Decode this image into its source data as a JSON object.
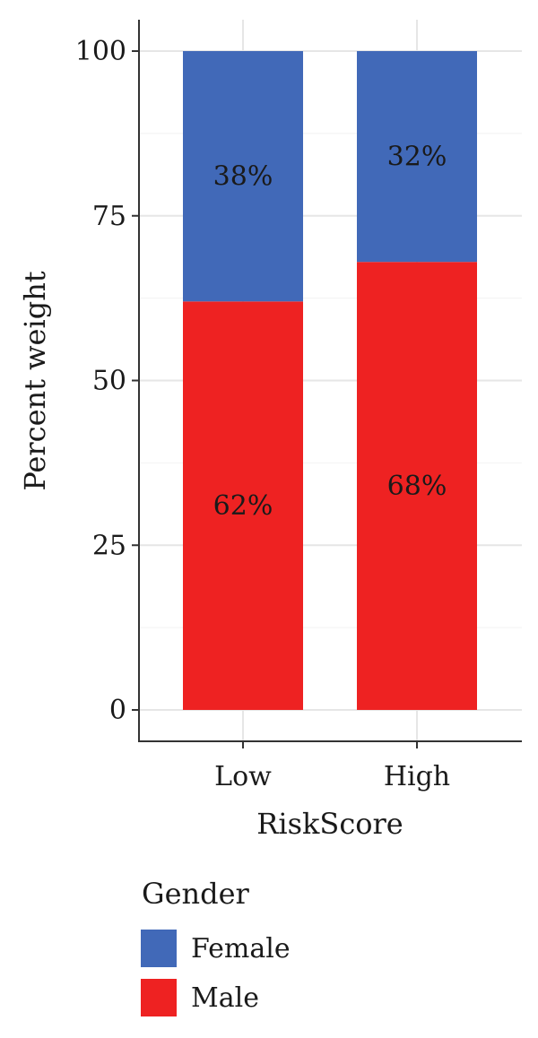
{
  "chart_data": {
    "type": "bar",
    "stacked": true,
    "categories": [
      "Low",
      "High"
    ],
    "series": [
      {
        "name": "Male",
        "values": [
          62,
          68
        ],
        "labels": [
          "62%",
          "68%"
        ],
        "color": "#ee2222"
      },
      {
        "name": "Female",
        "values": [
          38,
          32
        ],
        "labels": [
          "38%",
          "32%"
        ],
        "color": "#4169b8"
      }
    ],
    "xlabel": "RiskScore",
    "ylabel": "Percent weight",
    "ylim": [
      0,
      100
    ],
    "yticks": [
      0,
      25,
      50,
      75,
      100
    ],
    "grid": true,
    "legend": {
      "title": "Gender",
      "position": "bottom-left",
      "entries": [
        "Female",
        "Male"
      ]
    }
  }
}
